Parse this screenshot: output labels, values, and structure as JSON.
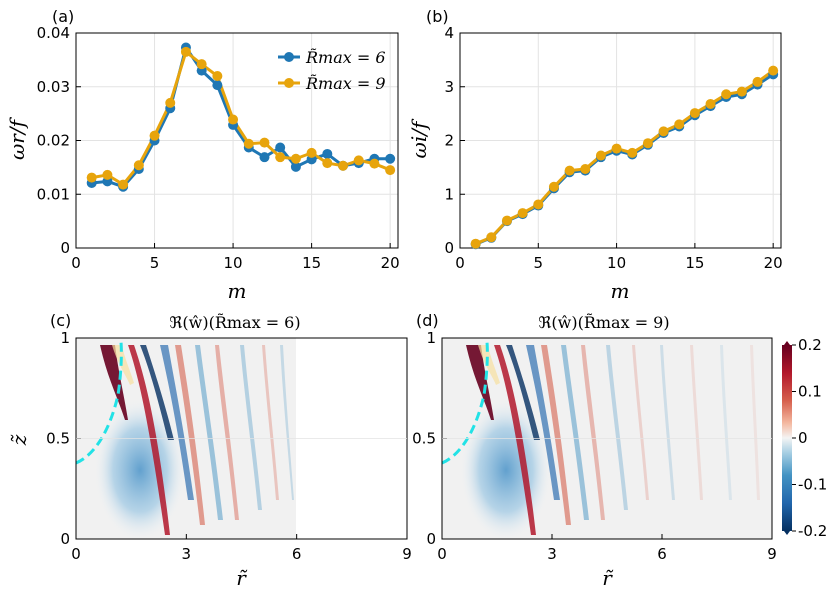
{
  "figure": {
    "panels": [
      {
        "label": "(a)"
      },
      {
        "label": "(b)"
      },
      {
        "label": "(c)"
      },
      {
        "label": "(d)"
      }
    ]
  },
  "chart_data": [
    {
      "id": "a",
      "type": "line",
      "panel_label": "(a)",
      "title": "",
      "xlabel": "m",
      "ylabel": "ωr/f",
      "xlim": [
        0,
        20.5
      ],
      "ylim": [
        0,
        0.04
      ],
      "xticks": [
        0,
        5,
        10,
        15,
        20
      ],
      "xtick_labels": [
        "0",
        "5",
        "10",
        "15",
        "20"
      ],
      "yticks": [
        0,
        0.01,
        0.02,
        0.03,
        0.04
      ],
      "ytick_labels": [
        "0",
        "0.01",
        "0.02",
        "0.03",
        "0.04"
      ],
      "grid": true,
      "legend": "top-right",
      "x": [
        1,
        2,
        3,
        4,
        5,
        6,
        7,
        8,
        9,
        10,
        11,
        12,
        13,
        14,
        15,
        16,
        17,
        18,
        19,
        20
      ],
      "series": [
        {
          "name": "R̃max = 6",
          "color": "#1f77b4",
          "values": [
            0.0121,
            0.0124,
            0.0114,
            0.0147,
            0.02,
            0.026,
            0.0373,
            0.033,
            0.0303,
            0.0229,
            0.0187,
            0.0169,
            0.0187,
            0.0151,
            0.0165,
            0.0175,
            0.0153,
            0.0158,
            0.0166,
            0.0166
          ]
        },
        {
          "name": "R̃max = 9",
          "color": "#e7a40c",
          "values": [
            0.0131,
            0.0136,
            0.0118,
            0.0154,
            0.0209,
            0.027,
            0.0365,
            0.0342,
            0.032,
            0.0239,
            0.0194,
            0.0196,
            0.0169,
            0.0166,
            0.0177,
            0.0158,
            0.0153,
            0.0163,
            0.0157,
            0.0145
          ]
        }
      ]
    },
    {
      "id": "b",
      "type": "line",
      "panel_label": "(b)",
      "title": "",
      "xlabel": "m",
      "ylabel": "ωi/f",
      "xlim": [
        0,
        20.5
      ],
      "ylim": [
        0,
        4
      ],
      "xticks": [
        0,
        5,
        10,
        15,
        20
      ],
      "xtick_labels": [
        "0",
        "5",
        "10",
        "15",
        "20"
      ],
      "yticks": [
        0,
        1,
        2,
        3,
        4
      ],
      "ytick_labels": [
        "0",
        "1",
        "2",
        "3",
        "4"
      ],
      "grid": true,
      "x": [
        1,
        2,
        3,
        4,
        5,
        6,
        7,
        8,
        9,
        10,
        11,
        12,
        13,
        14,
        15,
        16,
        17,
        18,
        19,
        20
      ],
      "series": [
        {
          "name": "R̃max = 6",
          "color": "#1f77b4",
          "values": [
            0.07,
            0.19,
            0.5,
            0.63,
            0.79,
            1.11,
            1.41,
            1.44,
            1.69,
            1.81,
            1.74,
            1.92,
            2.14,
            2.26,
            2.47,
            2.64,
            2.81,
            2.86,
            3.04,
            3.23
          ]
        },
        {
          "name": "R̃max = 9",
          "color": "#e7a40c",
          "values": [
            0.08,
            0.2,
            0.51,
            0.65,
            0.81,
            1.14,
            1.44,
            1.47,
            1.72,
            1.85,
            1.77,
            1.95,
            2.17,
            2.3,
            2.51,
            2.68,
            2.86,
            2.91,
            3.09,
            3.3
          ]
        }
      ]
    },
    {
      "id": "c",
      "type": "heatmap",
      "panel_label": "(c)",
      "title": "ℜ(ŵ)(R̃max = 6)",
      "xlabel": "r̃",
      "ylabel": "z̃",
      "xlim": [
        0,
        9
      ],
      "ylim": [
        0,
        1
      ],
      "xticks": [
        0,
        3,
        6,
        9
      ],
      "xtick_labels": [
        "0",
        "3",
        "6",
        "9"
      ],
      "yticks": [
        0,
        0.5,
        1
      ],
      "ytick_labels": [
        "0",
        "0.5",
        "1"
      ],
      "domain_rmax": 6,
      "overlay": "cyan dashed curve"
    },
    {
      "id": "d",
      "type": "heatmap",
      "panel_label": "(d)",
      "title": "ℜ(ŵ)(R̃max = 9)",
      "xlabel": "r̃",
      "ylabel": "z̃",
      "xlim": [
        0,
        9
      ],
      "ylim": [
        0,
        1
      ],
      "xticks": [
        0,
        3,
        6,
        9
      ],
      "xtick_labels": [
        "0",
        "3",
        "6",
        "9"
      ],
      "yticks": [
        0,
        0.5,
        1
      ],
      "ytick_labels": [
        "0",
        "0.5",
        "1"
      ],
      "domain_rmax": 9,
      "overlay": "cyan dashed curve"
    }
  ],
  "colorbar": {
    "range": [
      -0.2,
      0.2
    ],
    "ticks": [
      0.2,
      0.1,
      0,
      -0.1,
      -0.2
    ],
    "tick_labels": [
      "0.2",
      "0.1",
      "0",
      "-0.1",
      "-0.2"
    ],
    "colormap": "RdBu_r"
  }
}
